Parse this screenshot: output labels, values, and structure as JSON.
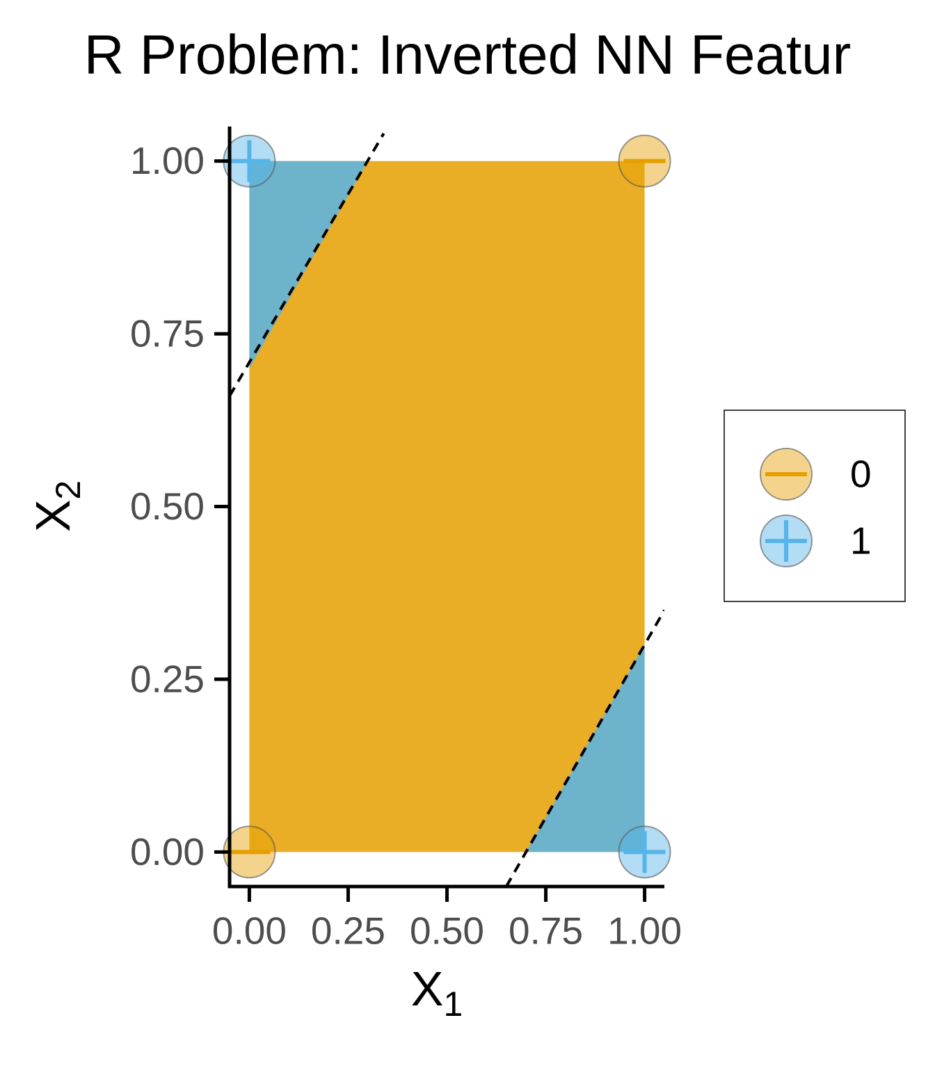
{
  "chart_data": {
    "type": "scatter",
    "title": "R Problem: Inverted NN Featur",
    "xlabel": "X",
    "xlabel_sub": "1",
    "ylabel": "X",
    "ylabel_sub": "2",
    "xlim": [
      -0.05,
      1.05
    ],
    "ylim": [
      -0.05,
      1.05
    ],
    "xticks": [
      {
        "value": 0,
        "label": "0.00"
      },
      {
        "value": 0.25,
        "label": "0.25"
      },
      {
        "value": 0.5,
        "label": "0.50"
      },
      {
        "value": 0.75,
        "label": "0.75"
      },
      {
        "value": 1,
        "label": "1.00"
      }
    ],
    "yticks": [
      {
        "value": 0,
        "label": "0.00"
      },
      {
        "value": 0.25,
        "label": "0.25"
      },
      {
        "value": 0.5,
        "label": "0.50"
      },
      {
        "value": 0.75,
        "label": "0.75"
      },
      {
        "value": 1,
        "label": "1.00"
      }
    ],
    "grid": false,
    "legend": "right",
    "series": [
      {
        "name": "0",
        "color": "#E69F00",
        "shape": "minus",
        "x": [
          0,
          1
        ],
        "values": [
          0,
          1
        ]
      },
      {
        "name": "1",
        "color": "#56B4E9",
        "shape": "plus",
        "x": [
          0,
          1
        ],
        "values": [
          1,
          0
        ]
      }
    ],
    "regions": [
      {
        "color": "#E69F00",
        "x": [
          0,
          1,
          1,
          0
        ],
        "y": [
          0,
          0,
          1,
          1
        ]
      },
      {
        "color": "#56B4E9",
        "x": [
          0,
          0,
          0.3
        ],
        "y": [
          0.7,
          1,
          1
        ]
      },
      {
        "color": "#56B4E9",
        "x": [
          0.7,
          1,
          1
        ],
        "y": [
          0,
          0,
          0.3
        ]
      }
    ],
    "boundaries": [
      {
        "x": [
          -0.05,
          0.34
        ],
        "y": [
          0.66,
          1.04
        ]
      },
      {
        "x": [
          0.65,
          1.05
        ],
        "y": [
          -0.05,
          0.35
        ]
      }
    ]
  }
}
